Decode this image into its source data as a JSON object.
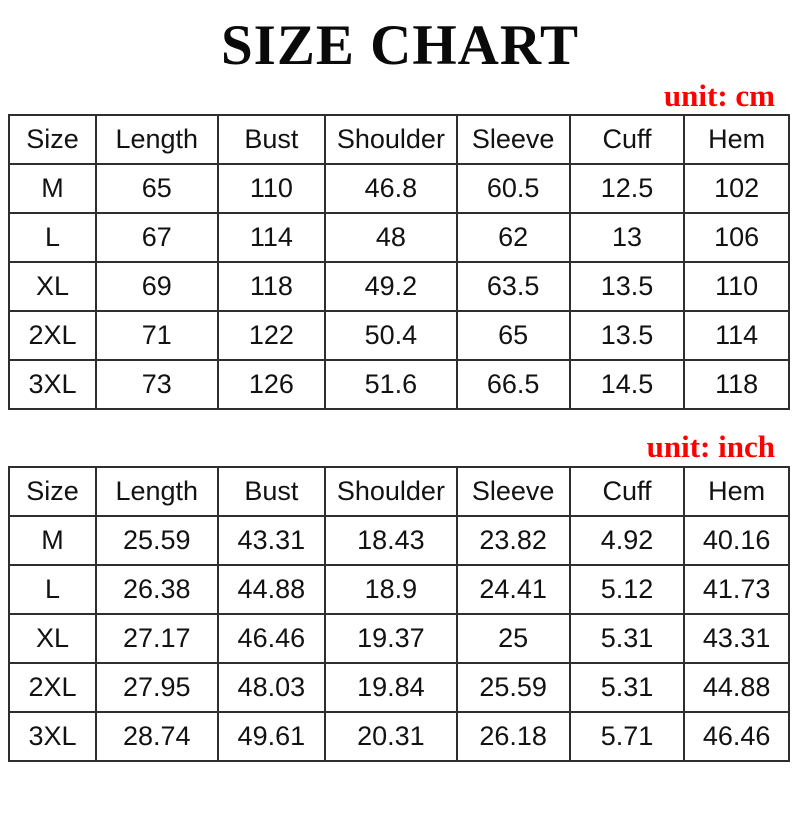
{
  "title": "SIZE CHART",
  "colors": {
    "accent_red": "#ff0000",
    "border": "#2e2e2e",
    "text": "#121212",
    "background": "#ffffff"
  },
  "chart_data": [
    {
      "type": "table",
      "title": "unit:  cm",
      "columns": [
        "Size",
        "Length",
        "Bust",
        "Shoulder",
        "Sleeve",
        "Cuff",
        "Hem"
      ],
      "rows": [
        [
          "M",
          "65",
          "110",
          "46.8",
          "60.5",
          "12.5",
          "102"
        ],
        [
          "L",
          "67",
          "114",
          "48",
          "62",
          "13",
          "106"
        ],
        [
          "XL",
          "69",
          "118",
          "49.2",
          "63.5",
          "13.5",
          "110"
        ],
        [
          "2XL",
          "71",
          "122",
          "50.4",
          "65",
          "13.5",
          "114"
        ],
        [
          "3XL",
          "73",
          "126",
          "51.6",
          "66.5",
          "14.5",
          "118"
        ]
      ]
    },
    {
      "type": "table",
      "title": "unit:  inch",
      "columns": [
        "Size",
        "Length",
        "Bust",
        "Shoulder",
        "Sleeve",
        "Cuff",
        "Hem"
      ],
      "rows": [
        [
          "M",
          "25.59",
          "43.31",
          "18.43",
          "23.82",
          "4.92",
          "40.16"
        ],
        [
          "L",
          "26.38",
          "44.88",
          "18.9",
          "24.41",
          "5.12",
          "41.73"
        ],
        [
          "XL",
          "27.17",
          "46.46",
          "19.37",
          "25",
          "5.31",
          "43.31"
        ],
        [
          "2XL",
          "27.95",
          "48.03",
          "19.84",
          "25.59",
          "5.31",
          "44.88"
        ],
        [
          "3XL",
          "28.74",
          "49.61",
          "20.31",
          "26.18",
          "5.71",
          "46.46"
        ]
      ]
    }
  ]
}
